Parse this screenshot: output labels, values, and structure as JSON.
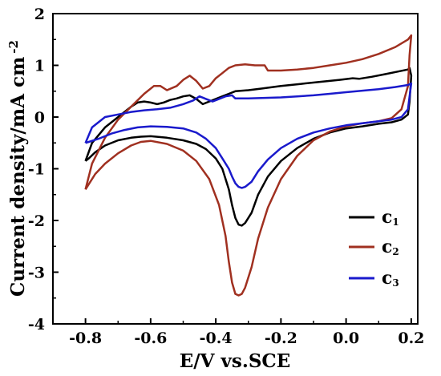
{
  "chart_data": {
    "type": "line",
    "title": "",
    "xlabel": "E/V vs.SCE",
    "ylabel": "Current density/mA cm",
    "ylabel_superscript": "-2",
    "xlim": [
      -0.9,
      0.22
    ],
    "ylim": [
      -4,
      2
    ],
    "xticks": [
      -0.8,
      -0.6,
      -0.4,
      -0.2,
      0.0,
      0.2
    ],
    "xtick_labels": [
      "-0.8",
      "-0.6",
      "-0.4",
      "-0.2",
      "0.0",
      "0.2"
    ],
    "yticks": [
      -4,
      -3,
      -2,
      -1,
      0,
      1,
      2
    ],
    "ytick_labels": [
      "-4",
      "-3",
      "-2",
      "-1",
      "0",
      "1",
      "2"
    ],
    "grid": false,
    "legend_position": "right",
    "series": [
      {
        "name": "c",
        "subscript": "1",
        "color": "#000000",
        "x": [
          -0.8,
          -0.78,
          -0.74,
          -0.7,
          -0.66,
          -0.64,
          -0.62,
          -0.6,
          -0.58,
          -0.56,
          -0.54,
          -0.52,
          -0.5,
          -0.48,
          -0.46,
          -0.44,
          -0.42,
          -0.4,
          -0.38,
          -0.36,
          -0.34,
          -0.3,
          -0.26,
          -0.2,
          -0.14,
          -0.08,
          -0.02,
          0.02,
          0.04,
          0.08,
          0.12,
          0.16,
          0.19,
          0.195,
          0.2,
          0.195,
          0.19,
          0.17,
          0.14,
          0.1,
          0.05,
          0.0,
          -0.05,
          -0.1,
          -0.15,
          -0.2,
          -0.24,
          -0.27,
          -0.29,
          -0.31,
          -0.32,
          -0.33,
          -0.34,
          -0.35,
          -0.36,
          -0.38,
          -0.4,
          -0.43,
          -0.46,
          -0.5,
          -0.55,
          -0.6,
          -0.63,
          -0.66,
          -0.7,
          -0.74,
          -0.77,
          -0.79,
          -0.8
        ],
        "y": [
          -0.85,
          -0.5,
          -0.2,
          0.0,
          0.2,
          0.28,
          0.3,
          0.28,
          0.25,
          0.28,
          0.33,
          0.36,
          0.4,
          0.42,
          0.35,
          0.25,
          0.3,
          0.35,
          0.4,
          0.45,
          0.5,
          0.52,
          0.55,
          0.6,
          0.64,
          0.68,
          0.72,
          0.75,
          0.74,
          0.78,
          0.83,
          0.88,
          0.92,
          0.95,
          0.8,
          0.3,
          0.05,
          -0.05,
          -0.1,
          -0.13,
          -0.18,
          -0.22,
          -0.3,
          -0.42,
          -0.6,
          -0.85,
          -1.15,
          -1.5,
          -1.85,
          -2.05,
          -2.1,
          -2.08,
          -1.95,
          -1.7,
          -1.4,
          -1.0,
          -0.8,
          -0.62,
          -0.52,
          -0.45,
          -0.4,
          -0.37,
          -0.38,
          -0.4,
          -0.45,
          -0.55,
          -0.68,
          -0.8,
          -0.85
        ]
      },
      {
        "name": "c",
        "subscript": "2",
        "color": "#a03020",
        "x": [
          -0.8,
          -0.78,
          -0.74,
          -0.7,
          -0.66,
          -0.62,
          -0.59,
          -0.57,
          -0.55,
          -0.52,
          -0.5,
          -0.48,
          -0.46,
          -0.44,
          -0.42,
          -0.4,
          -0.38,
          -0.36,
          -0.34,
          -0.31,
          -0.28,
          -0.26,
          -0.25,
          -0.24,
          -0.2,
          -0.15,
          -0.1,
          -0.05,
          0.0,
          0.05,
          0.1,
          0.15,
          0.19,
          0.2,
          0.195,
          0.19,
          0.17,
          0.14,
          0.1,
          0.05,
          0.0,
          -0.05,
          -0.1,
          -0.15,
          -0.2,
          -0.24,
          -0.27,
          -0.29,
          -0.31,
          -0.32,
          -0.33,
          -0.34,
          -0.35,
          -0.36,
          -0.37,
          -0.39,
          -0.42,
          -0.46,
          -0.5,
          -0.55,
          -0.6,
          -0.63,
          -0.66,
          -0.7,
          -0.74,
          -0.77,
          -0.79,
          -0.8
        ],
        "y": [
          -1.4,
          -0.9,
          -0.4,
          -0.05,
          0.2,
          0.45,
          0.6,
          0.6,
          0.52,
          0.6,
          0.72,
          0.8,
          0.7,
          0.55,
          0.6,
          0.75,
          0.85,
          0.95,
          1.0,
          1.02,
          1.0,
          1.0,
          1.0,
          0.9,
          0.9,
          0.92,
          0.95,
          1.0,
          1.05,
          1.12,
          1.22,
          1.35,
          1.5,
          1.58,
          1.2,
          0.6,
          0.15,
          -0.02,
          -0.08,
          -0.12,
          -0.18,
          -0.28,
          -0.45,
          -0.75,
          -1.2,
          -1.75,
          -2.35,
          -2.9,
          -3.3,
          -3.42,
          -3.45,
          -3.42,
          -3.2,
          -2.8,
          -2.3,
          -1.7,
          -1.2,
          -0.85,
          -0.65,
          -0.52,
          -0.46,
          -0.48,
          -0.55,
          -0.7,
          -0.9,
          -1.1,
          -1.3,
          -1.4
        ]
      },
      {
        "name": "c",
        "subscript": "3",
        "color": "#1a1acc",
        "x": [
          -0.8,
          -0.78,
          -0.74,
          -0.7,
          -0.66,
          -0.62,
          -0.58,
          -0.54,
          -0.5,
          -0.47,
          -0.45,
          -0.43,
          -0.41,
          -0.39,
          -0.37,
          -0.35,
          -0.34,
          -0.3,
          -0.25,
          -0.2,
          -0.15,
          -0.1,
          -0.05,
          0.0,
          0.05,
          0.1,
          0.15,
          0.19,
          0.2,
          0.195,
          0.19,
          0.17,
          0.14,
          0.1,
          0.05,
          0.0,
          -0.05,
          -0.1,
          -0.15,
          -0.2,
          -0.24,
          -0.27,
          -0.29,
          -0.31,
          -0.32,
          -0.33,
          -0.34,
          -0.35,
          -0.36,
          -0.38,
          -0.4,
          -0.43,
          -0.46,
          -0.5,
          -0.55,
          -0.6,
          -0.64,
          -0.68,
          -0.72,
          -0.76,
          -0.79,
          -0.8
        ],
        "y": [
          -0.5,
          -0.2,
          0.0,
          0.05,
          0.1,
          0.13,
          0.15,
          0.18,
          0.25,
          0.32,
          0.4,
          0.35,
          0.3,
          0.35,
          0.4,
          0.42,
          0.36,
          0.36,
          0.37,
          0.38,
          0.4,
          0.42,
          0.45,
          0.48,
          0.51,
          0.54,
          0.58,
          0.62,
          0.65,
          0.4,
          0.15,
          0.0,
          -0.05,
          -0.08,
          -0.12,
          -0.16,
          -0.22,
          -0.3,
          -0.42,
          -0.6,
          -0.82,
          -1.05,
          -1.25,
          -1.35,
          -1.37,
          -1.35,
          -1.28,
          -1.15,
          -1.0,
          -0.8,
          -0.6,
          -0.42,
          -0.3,
          -0.22,
          -0.19,
          -0.18,
          -0.2,
          -0.25,
          -0.32,
          -0.42,
          -0.48,
          -0.5
        ]
      }
    ]
  }
}
